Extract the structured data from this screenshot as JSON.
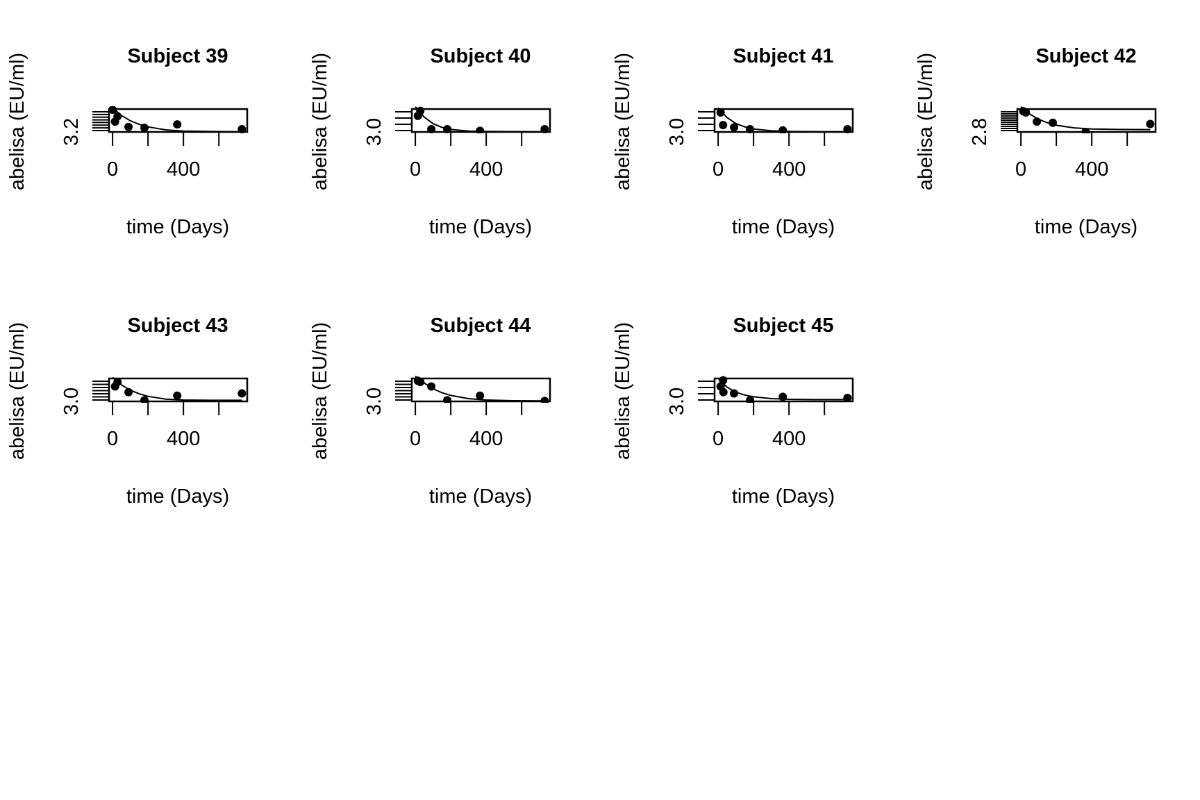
{
  "chart_data": [
    {
      "type": "scatter",
      "title": "Subject 39",
      "xlabel": "time (Days)",
      "ylabel": "abelisa (EU/ml)",
      "x_ticks": [
        0,
        400
      ],
      "y_tick_label": "3.2",
      "xlim": [
        -20,
        760
      ],
      "ylim": [
        0,
        1
      ],
      "points": [
        [
          0,
          0.97
        ],
        [
          14,
          0.45
        ],
        [
          28,
          0.68
        ],
        [
          90,
          0.22
        ],
        [
          180,
          0.18
        ],
        [
          365,
          0.33
        ],
        [
          730,
          0.12
        ]
      ],
      "fit_curve": [
        [
          0,
          1.05
        ],
        [
          50,
          0.72
        ],
        [
          100,
          0.49
        ],
        [
          150,
          0.33
        ],
        [
          200,
          0.22
        ],
        [
          300,
          0.09
        ],
        [
          400,
          0.04
        ],
        [
          550,
          0.02
        ],
        [
          730,
          0.01
        ]
      ],
      "extra_y_ticks": 8
    },
    {
      "type": "scatter",
      "title": "Subject 40",
      "xlabel": "time (Days)",
      "ylabel": "abelisa (EU/ml)",
      "x_ticks": [
        0,
        400
      ],
      "y_tick_label": "3.0",
      "xlim": [
        -20,
        760
      ],
      "ylim": [
        0,
        1
      ],
      "points": [
        [
          14,
          0.7
        ],
        [
          28,
          0.92
        ],
        [
          90,
          0.12
        ],
        [
          180,
          0.12
        ],
        [
          365,
          0.05
        ],
        [
          730,
          0.12
        ]
      ],
      "fit_curve": [
        [
          0,
          1.1
        ],
        [
          50,
          0.65
        ],
        [
          100,
          0.36
        ],
        [
          150,
          0.2
        ],
        [
          200,
          0.11
        ],
        [
          300,
          0.04
        ],
        [
          400,
          0.02
        ],
        [
          730,
          0.01
        ]
      ],
      "extra_y_ticks": 4
    },
    {
      "type": "scatter",
      "title": "Subject 41",
      "xlabel": "time (Days)",
      "ylabel": "abelisa (EU/ml)",
      "x_ticks": [
        0,
        400
      ],
      "y_tick_label": "3.0",
      "xlim": [
        -20,
        760
      ],
      "ylim": [
        0,
        1
      ],
      "points": [
        [
          14,
          0.85
        ],
        [
          28,
          0.3
        ],
        [
          90,
          0.2
        ],
        [
          180,
          0.12
        ],
        [
          365,
          0.07
        ],
        [
          730,
          0.12
        ]
      ],
      "fit_curve": [
        [
          0,
          1.05
        ],
        [
          50,
          0.63
        ],
        [
          100,
          0.37
        ],
        [
          150,
          0.22
        ],
        [
          200,
          0.13
        ],
        [
          300,
          0.05
        ],
        [
          400,
          0.02
        ],
        [
          730,
          0.01
        ]
      ],
      "extra_y_ticks": 4
    },
    {
      "type": "scatter",
      "title": "Subject 42",
      "xlabel": "time (Days)",
      "ylabel": "abelisa (EU/ml)",
      "x_ticks": [
        0,
        400
      ],
      "y_tick_label": "2.8",
      "xlim": [
        -20,
        760
      ],
      "ylim": [
        0,
        1
      ],
      "points": [
        [
          14,
          0.9
        ],
        [
          28,
          0.85
        ],
        [
          90,
          0.45
        ],
        [
          180,
          0.4
        ],
        [
          365,
          0.0
        ],
        [
          730,
          0.35
        ]
      ],
      "fit_curve": [
        [
          0,
          1.1
        ],
        [
          50,
          0.78
        ],
        [
          100,
          0.55
        ],
        [
          150,
          0.4
        ],
        [
          200,
          0.29
        ],
        [
          300,
          0.18
        ],
        [
          400,
          0.13
        ],
        [
          550,
          0.11
        ],
        [
          730,
          0.1
        ]
      ],
      "extra_y_ticks": 10
    },
    {
      "type": "scatter",
      "title": "Subject 43",
      "xlabel": "time (Days)",
      "ylabel": "abelisa (EU/ml)",
      "x_ticks": [
        0,
        400
      ],
      "y_tick_label": "3.0",
      "xlim": [
        -20,
        760
      ],
      "ylim": [
        0,
        1
      ],
      "points": [
        [
          14,
          0.65
        ],
        [
          28,
          0.85
        ],
        [
          90,
          0.4
        ],
        [
          180,
          0.05
        ],
        [
          365,
          0.25
        ],
        [
          730,
          0.35
        ]
      ],
      "fit_curve": [
        [
          0,
          1.05
        ],
        [
          50,
          0.72
        ],
        [
          100,
          0.49
        ],
        [
          150,
          0.33
        ],
        [
          200,
          0.22
        ],
        [
          300,
          0.1
        ],
        [
          400,
          0.06
        ],
        [
          550,
          0.05
        ],
        [
          730,
          0.05
        ]
      ],
      "extra_y_ticks": 7
    },
    {
      "type": "scatter",
      "title": "Subject 44",
      "xlabel": "time (Days)",
      "ylabel": "abelisa (EU/ml)",
      "x_ticks": [
        0,
        400
      ],
      "y_tick_label": "3.0",
      "xlim": [
        -20,
        760
      ],
      "ylim": [
        0,
        1
      ],
      "points": [
        [
          14,
          0.9
        ],
        [
          28,
          0.85
        ],
        [
          90,
          0.65
        ],
        [
          180,
          0.05
        ],
        [
          365,
          0.25
        ],
        [
          730,
          0.02
        ]
      ],
      "fit_curve": [
        [
          0,
          1.1
        ],
        [
          50,
          0.8
        ],
        [
          100,
          0.55
        ],
        [
          150,
          0.38
        ],
        [
          200,
          0.26
        ],
        [
          300,
          0.12
        ],
        [
          400,
          0.06
        ],
        [
          550,
          0.03
        ],
        [
          730,
          0.02
        ]
      ],
      "extra_y_ticks": 7
    },
    {
      "type": "scatter",
      "title": "Subject 45",
      "xlabel": "time (Days)",
      "ylabel": "abelisa (EU/ml)",
      "x_ticks": [
        0,
        400
      ],
      "y_tick_label": "3.0",
      "xlim": [
        -20,
        760
      ],
      "ylim": [
        0,
        1
      ],
      "points": [
        [
          14,
          0.65
        ],
        [
          28,
          0.92
        ],
        [
          30,
          0.4
        ],
        [
          90,
          0.35
        ],
        [
          180,
          0.05
        ],
        [
          365,
          0.2
        ],
        [
          730,
          0.15
        ]
      ],
      "fit_curve": [
        [
          0,
          1.0
        ],
        [
          50,
          0.62
        ],
        [
          100,
          0.4
        ],
        [
          150,
          0.28
        ],
        [
          200,
          0.2
        ],
        [
          300,
          0.12
        ],
        [
          400,
          0.09
        ],
        [
          550,
          0.08
        ],
        [
          730,
          0.08
        ]
      ],
      "extra_y_ticks": 4
    }
  ]
}
